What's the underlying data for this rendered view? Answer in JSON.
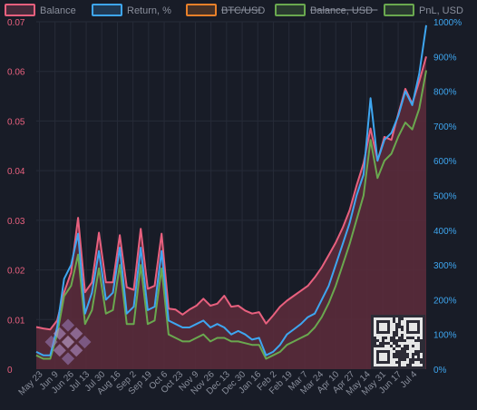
{
  "colors": {
    "background": "#181c27",
    "grid": "#262b38",
    "balance": "#e8607e",
    "balance_fill": "#5a2b3b",
    "return": "#3ea6f0",
    "btc": "#e8802a",
    "balance_usd": "#6aa84f",
    "pnl": "#6aa84f",
    "axis_text": "#8a8f9c"
  },
  "icons": [
    "qr-code-icon",
    "diamond-logo-icon"
  ],
  "chart_data": {
    "type": "area",
    "legend": {
      "placement": "top",
      "items": [
        {
          "name": "Balance",
          "color": "#e8607e",
          "enabled": true
        },
        {
          "name": "Return, %",
          "color": "#3ea6f0",
          "enabled": true
        },
        {
          "name": "BTC/USD",
          "color": "#e8802a",
          "enabled": false
        },
        {
          "name": "Balance, USD",
          "color": "#6aa84f",
          "enabled": false
        },
        {
          "name": "PnL, USD",
          "color": "#6aa84f",
          "enabled": true
        }
      ]
    },
    "x_labels": [
      "May 23",
      "Jun 9",
      "Jun 26",
      "Jul 13",
      "Jul 30",
      "Aug 16",
      "Sep 2",
      "Sep 19",
      "Oct 6",
      "Oct 23",
      "Nov 9",
      "Nov 26",
      "Dec 13",
      "Dec 30",
      "Jan 16",
      "Feb 2",
      "Feb 19",
      "Mar 7",
      "Mar 24",
      "Apr 10",
      "Apr 27",
      "May 14",
      "May 31",
      "Jun 17",
      "Jul 4"
    ],
    "y_left": {
      "min": 0,
      "max": 0.07,
      "ticks": [
        "0",
        "0.01",
        "0.02",
        "0.03",
        "0.04",
        "0.05",
        "0.06",
        "0.07"
      ]
    },
    "y_right": {
      "min": 0,
      "max": 1,
      "ticks": [
        "0%",
        "100%",
        "200%",
        "300%",
        "400%",
        "500%",
        "600%",
        "700%",
        "800%",
        "900%",
        "1000%"
      ]
    },
    "grid": true,
    "series": [
      {
        "name": "Balance",
        "axis": "left",
        "values": [
          0.0085,
          0.0082,
          0.008,
          0.0098,
          0.0155,
          0.0195,
          0.0305,
          0.0155,
          0.0175,
          0.0275,
          0.0175,
          0.0175,
          0.027,
          0.0165,
          0.016,
          0.0283,
          0.0162,
          0.0168,
          0.0273,
          0.0122,
          0.012,
          0.011,
          0.012,
          0.0128,
          0.0142,
          0.0128,
          0.0132,
          0.0148,
          0.0126,
          0.0128,
          0.0118,
          0.0112,
          0.0115,
          0.0092,
          0.0108,
          0.0126,
          0.0138,
          0.0148,
          0.0158,
          0.0168,
          0.0185,
          0.0205,
          0.023,
          0.0255,
          0.0285,
          0.032,
          0.037,
          0.0415,
          0.0485,
          0.042,
          0.0468,
          0.0462,
          0.0515,
          0.0565,
          0.0535,
          0.058,
          0.063
        ]
      },
      {
        "name": "Return, %",
        "axis": "right",
        "values": [
          0.05,
          0.04,
          0.04,
          0.12,
          0.26,
          0.3,
          0.39,
          0.16,
          0.22,
          0.34,
          0.2,
          0.22,
          0.35,
          0.16,
          0.18,
          0.35,
          0.17,
          0.18,
          0.34,
          0.14,
          0.13,
          0.12,
          0.12,
          0.13,
          0.14,
          0.12,
          0.13,
          0.12,
          0.1,
          0.11,
          0.1,
          0.085,
          0.09,
          0.04,
          0.05,
          0.07,
          0.1,
          0.115,
          0.13,
          0.15,
          0.16,
          0.2,
          0.24,
          0.3,
          0.36,
          0.42,
          0.5,
          0.56,
          0.78,
          0.6,
          0.66,
          0.68,
          0.73,
          0.8,
          0.76,
          0.85,
          0.99
        ]
      },
      {
        "name": "PnL, USD",
        "axis": "right",
        "values": [
          0.04,
          0.03,
          0.03,
          0.1,
          0.21,
          0.24,
          0.33,
          0.13,
          0.17,
          0.29,
          0.16,
          0.17,
          0.3,
          0.13,
          0.13,
          0.3,
          0.13,
          0.14,
          0.29,
          0.1,
          0.09,
          0.08,
          0.08,
          0.09,
          0.1,
          0.08,
          0.09,
          0.09,
          0.08,
          0.08,
          0.075,
          0.07,
          0.07,
          0.03,
          0.04,
          0.05,
          0.07,
          0.08,
          0.09,
          0.1,
          0.12,
          0.15,
          0.19,
          0.24,
          0.3,
          0.36,
          0.43,
          0.5,
          0.66,
          0.55,
          0.6,
          0.62,
          0.67,
          0.71,
          0.69,
          0.75,
          0.86
        ]
      }
    ]
  }
}
